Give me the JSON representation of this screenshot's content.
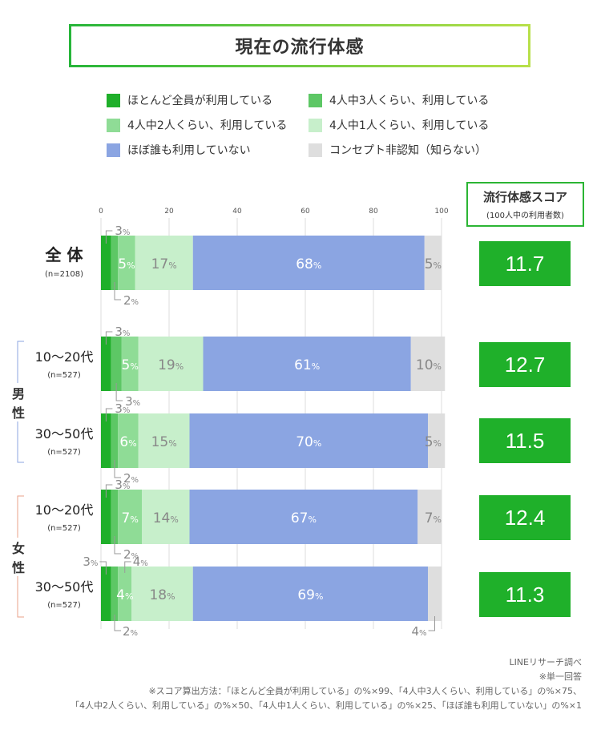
{
  "title": "現在の流行体感",
  "legend": [
    {
      "label": "ほとんど全員が利用している",
      "color": "#1faf2a"
    },
    {
      "label": "4人中3人くらい、利用している",
      "color": "#5dc765"
    },
    {
      "label": "4人中2人くらい、利用している",
      "color": "#8fdc96"
    },
    {
      "label": "4人中1人くらい、利用している",
      "color": "#c7efcb"
    },
    {
      "label": "ほぼ誰も利用していない",
      "color": "#8ba5e2"
    },
    {
      "label": "コンセプト非認知（知らない）",
      "color": "#dedede"
    }
  ],
  "score_header": {
    "title": "流行体感スコア",
    "subtitle": "(100人中の利用者数)"
  },
  "groups": [
    {
      "label_chars": [
        "男",
        "性"
      ]
    },
    {
      "label_chars": [
        "女",
        "性"
      ]
    }
  ],
  "chart_data": {
    "type": "bar",
    "orientation": "horizontal-stacked",
    "xlim": [
      0,
      100
    ],
    "ticks": [
      "0",
      "20",
      "40",
      "60",
      "80",
      "100"
    ],
    "unit": "%",
    "series_names": [
      "ほとんど全員が利用している",
      "4人中3人くらい、利用している",
      "4人中2人くらい、利用している",
      "4人中1人くらい、利用している",
      "ほぼ誰も利用していない",
      "コンセプト非認知（知らない）"
    ],
    "rows": [
      {
        "label": "全 体",
        "n": "(n=2108)",
        "values": [
          3,
          2,
          5,
          17,
          68,
          5
        ],
        "score": "11.7"
      },
      {
        "label": "10〜20代",
        "n": "(n=527)",
        "values": [
          3,
          3,
          5,
          19,
          61,
          10
        ],
        "score": "12.7"
      },
      {
        "label": "30〜50代",
        "n": "(n=527)",
        "values": [
          3,
          2,
          6,
          15,
          70,
          5
        ],
        "score": "11.5"
      },
      {
        "label": "10〜20代",
        "n": "(n=527)",
        "values": [
          3,
          2,
          7,
          14,
          67,
          7
        ],
        "score": "12.4"
      },
      {
        "label": "30〜50代",
        "n": "(n=527)",
        "values": [
          3,
          2,
          4,
          18,
          69,
          4
        ],
        "score": "11.3"
      }
    ]
  },
  "footer": [
    "LINEリサーチ調べ",
    "※単一回答",
    "※スコア算出方法：「ほとんど全員が利用している」の%×99、「4人中3人くらい、利用している」の%×75、",
    "「4人中2人くらい、利用している」の%×50、「4人中1人くらい、利用している」の%×25、「ほぼ誰も利用していない」の%×1"
  ]
}
